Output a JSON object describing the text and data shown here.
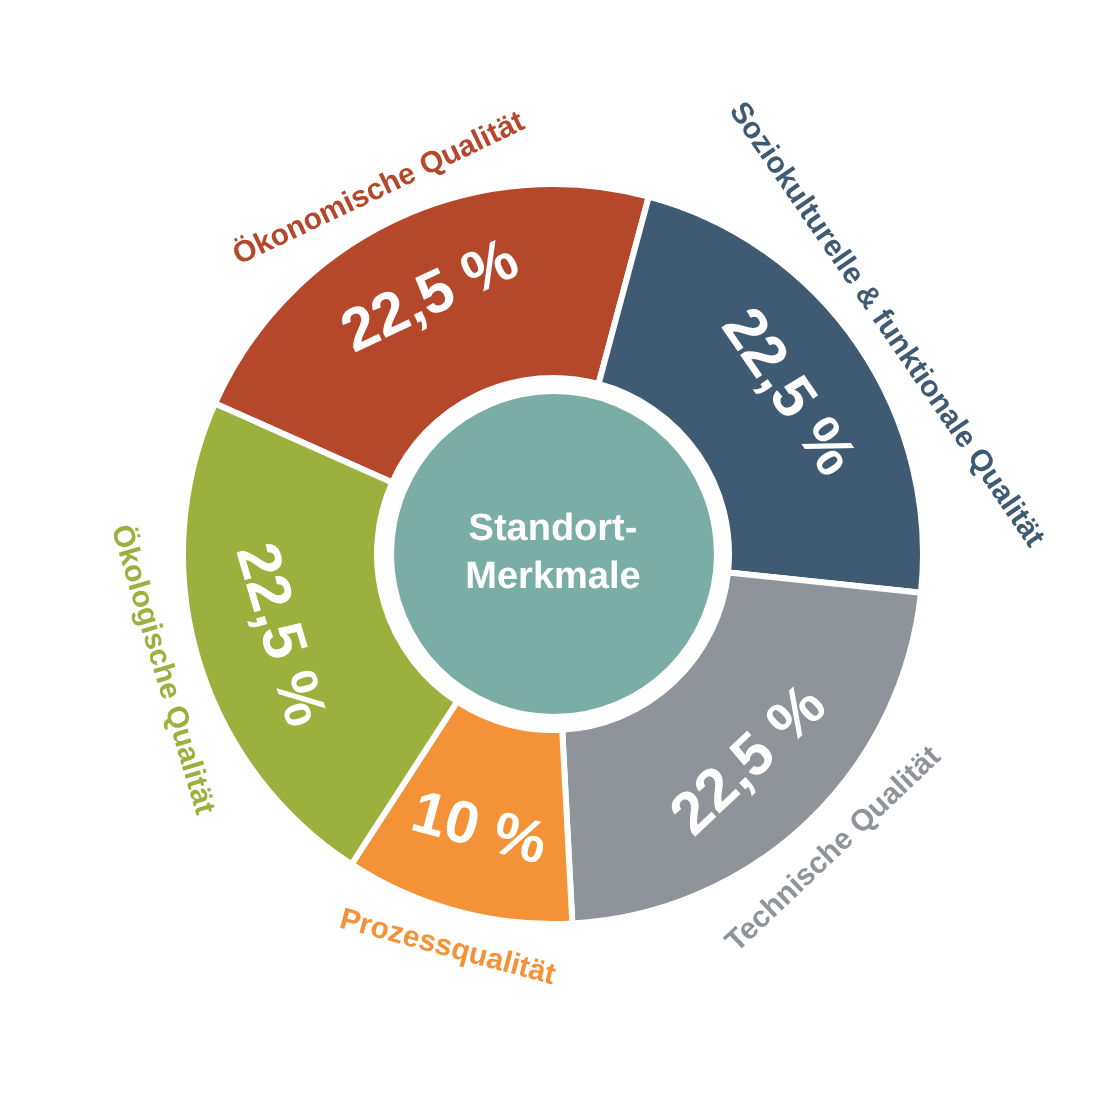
{
  "chart_data": {
    "type": "donut",
    "categories": [
      "Ökonomische Qualität",
      "Soziokulturelle & funktionale Qualität",
      "Technische Qualität",
      "Prozessqualität",
      "Ökologische Qualität"
    ],
    "values": [
      22.5,
      22.5,
      22.5,
      10,
      22.5
    ],
    "colors": [
      "#b5482a",
      "#3f5b73",
      "#8f939a",
      "#f39237",
      "#9bb03d"
    ],
    "value_labels": [
      "22,5 %",
      "22,5 %",
      "22,5 %",
      "10 %",
      "22,5 %"
    ],
    "annotations": [
      "Standort-Merkmale"
    ]
  }
}
